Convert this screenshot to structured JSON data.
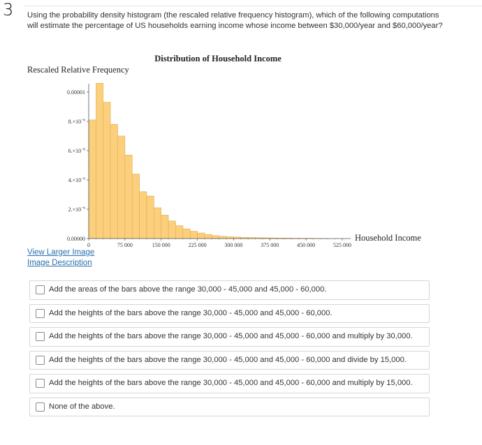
{
  "question_number": "3",
  "question_text": "Using the probability density histogram (the rescaled relative frequency histogram), which of the following computations will estimate the percentage of US households earning income whose income between $30,000/year and $60,000/year?",
  "links": {
    "larger_image": "View Larger Image",
    "image_description": "Image Description"
  },
  "options": [
    "Add the areas of the bars above the range 30,000 - 45,000 and 45,000 - 60,000.",
    "Add the heights of the bars above the range 30,000 - 45,000 and 45,000 - 60,000.",
    "Add the heights of the bars above the range 30,000 - 45,000 and 45,000 - 60,000 and multiply by 30,000.",
    "Add the heights of the bars above the range 30,000 - 45,000 and 45,000 - 60,000 and divide by 15,000.",
    "Add the heights of the bars above the range 30,000 - 45,000 and 45,000 - 60,000 and multiply by 15,000.",
    "None of the above."
  ],
  "colors": {
    "bar_fill": "#fbcf7c",
    "bar_stroke": "#e2ac52",
    "link": "#2a6fb0"
  },
  "chart_data": {
    "type": "bar",
    "title": "Distribution of Household Income",
    "ylabel": "Rescaled Relative Frequency",
    "xlabel": "Household Income",
    "bin_width": 15000,
    "x_start": 0,
    "xlim": [
      0,
      525000
    ],
    "ylim": [
      0,
      1.05e-05
    ],
    "x_ticks": [
      {
        "value": 0,
        "label": "0"
      },
      {
        "value": 75000,
        "label": "75 000"
      },
      {
        "value": 150000,
        "label": "150 000"
      },
      {
        "value": 225000,
        "label": "225 000"
      },
      {
        "value": 300000,
        "label": "300 000"
      },
      {
        "value": 375000,
        "label": "375 000"
      },
      {
        "value": 450000,
        "label": "450 000"
      },
      {
        "value": 525000,
        "label": "525 000"
      }
    ],
    "y_ticks": [
      {
        "value": 0,
        "mant": "0.00000",
        "exp": ""
      },
      {
        "value": 2e-06,
        "mant": "2.×10",
        "exp": "−6"
      },
      {
        "value": 4e-06,
        "mant": "4.×10",
        "exp": "−6"
      },
      {
        "value": 6e-06,
        "mant": "6.×10",
        "exp": "−6"
      },
      {
        "value": 8e-06,
        "mant": "8.×10",
        "exp": "−6"
      },
      {
        "value": 1e-05,
        "mant": "0.00001",
        "exp": ""
      }
    ],
    "values": [
      8.1e-06,
      1.06e-05,
      9.3e-06,
      7.8e-06,
      7e-06,
      5.7e-06,
      4.4e-06,
      3.2e-06,
      2.9e-06,
      2.1e-06,
      1.6e-06,
      1.2e-06,
      8.8e-07,
      6.6e-07,
      5e-07,
      3.8e-07,
      2.8e-07,
      2e-07,
      1.5e-07,
      1.2e-07,
      1e-07,
      8e-08,
      7e-08,
      6e-08,
      5e-08,
      4e-08,
      3e-08,
      3e-08,
      2e-08,
      2e-08,
      2e-08,
      1e-08,
      1e-08
    ]
  }
}
